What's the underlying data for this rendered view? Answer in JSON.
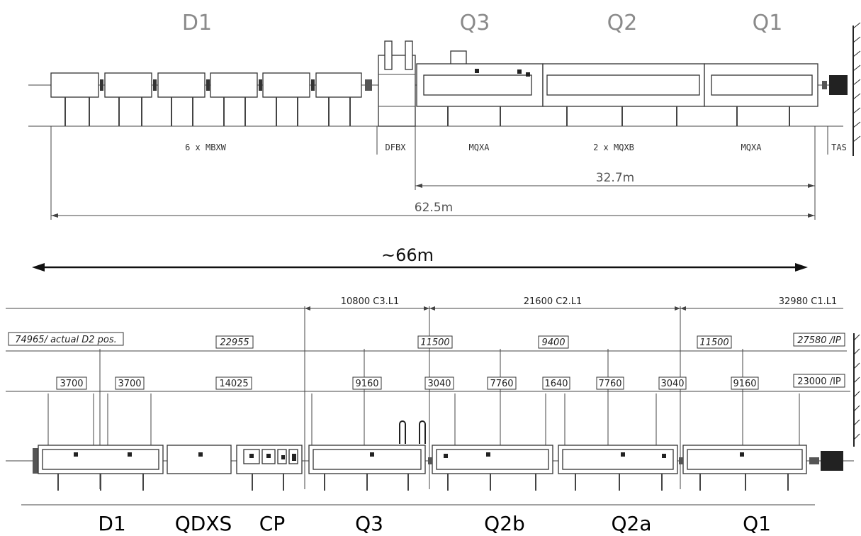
{
  "top": {
    "titles": [
      "D1",
      "Q3",
      "Q2",
      "Q1"
    ],
    "labels": [
      "6 x MBXW",
      "DFBX",
      "MQXA",
      "2 x MQXB",
      "MQXA",
      "TAS"
    ],
    "dim_32": "32.7m",
    "dim_62": "62.5m"
  },
  "middle": {
    "length": "~66m"
  },
  "bottom": {
    "cum": [
      "10800 C3.L1",
      "21600 C2.L1",
      "32980 C1.L1"
    ],
    "row2": [
      "74965/ actual D2 pos.",
      "22955",
      "11500",
      "9400",
      "11500",
      "27580 /IP"
    ],
    "row3": [
      "3700",
      "3700",
      "14025",
      "9160",
      "3040",
      "7760",
      "1640",
      "7760",
      "3040",
      "9160",
      "23000 /IP"
    ],
    "names": [
      "D1",
      "QDXS",
      "CP",
      "Q3",
      "Q2b",
      "Q2a",
      "Q1"
    ]
  }
}
